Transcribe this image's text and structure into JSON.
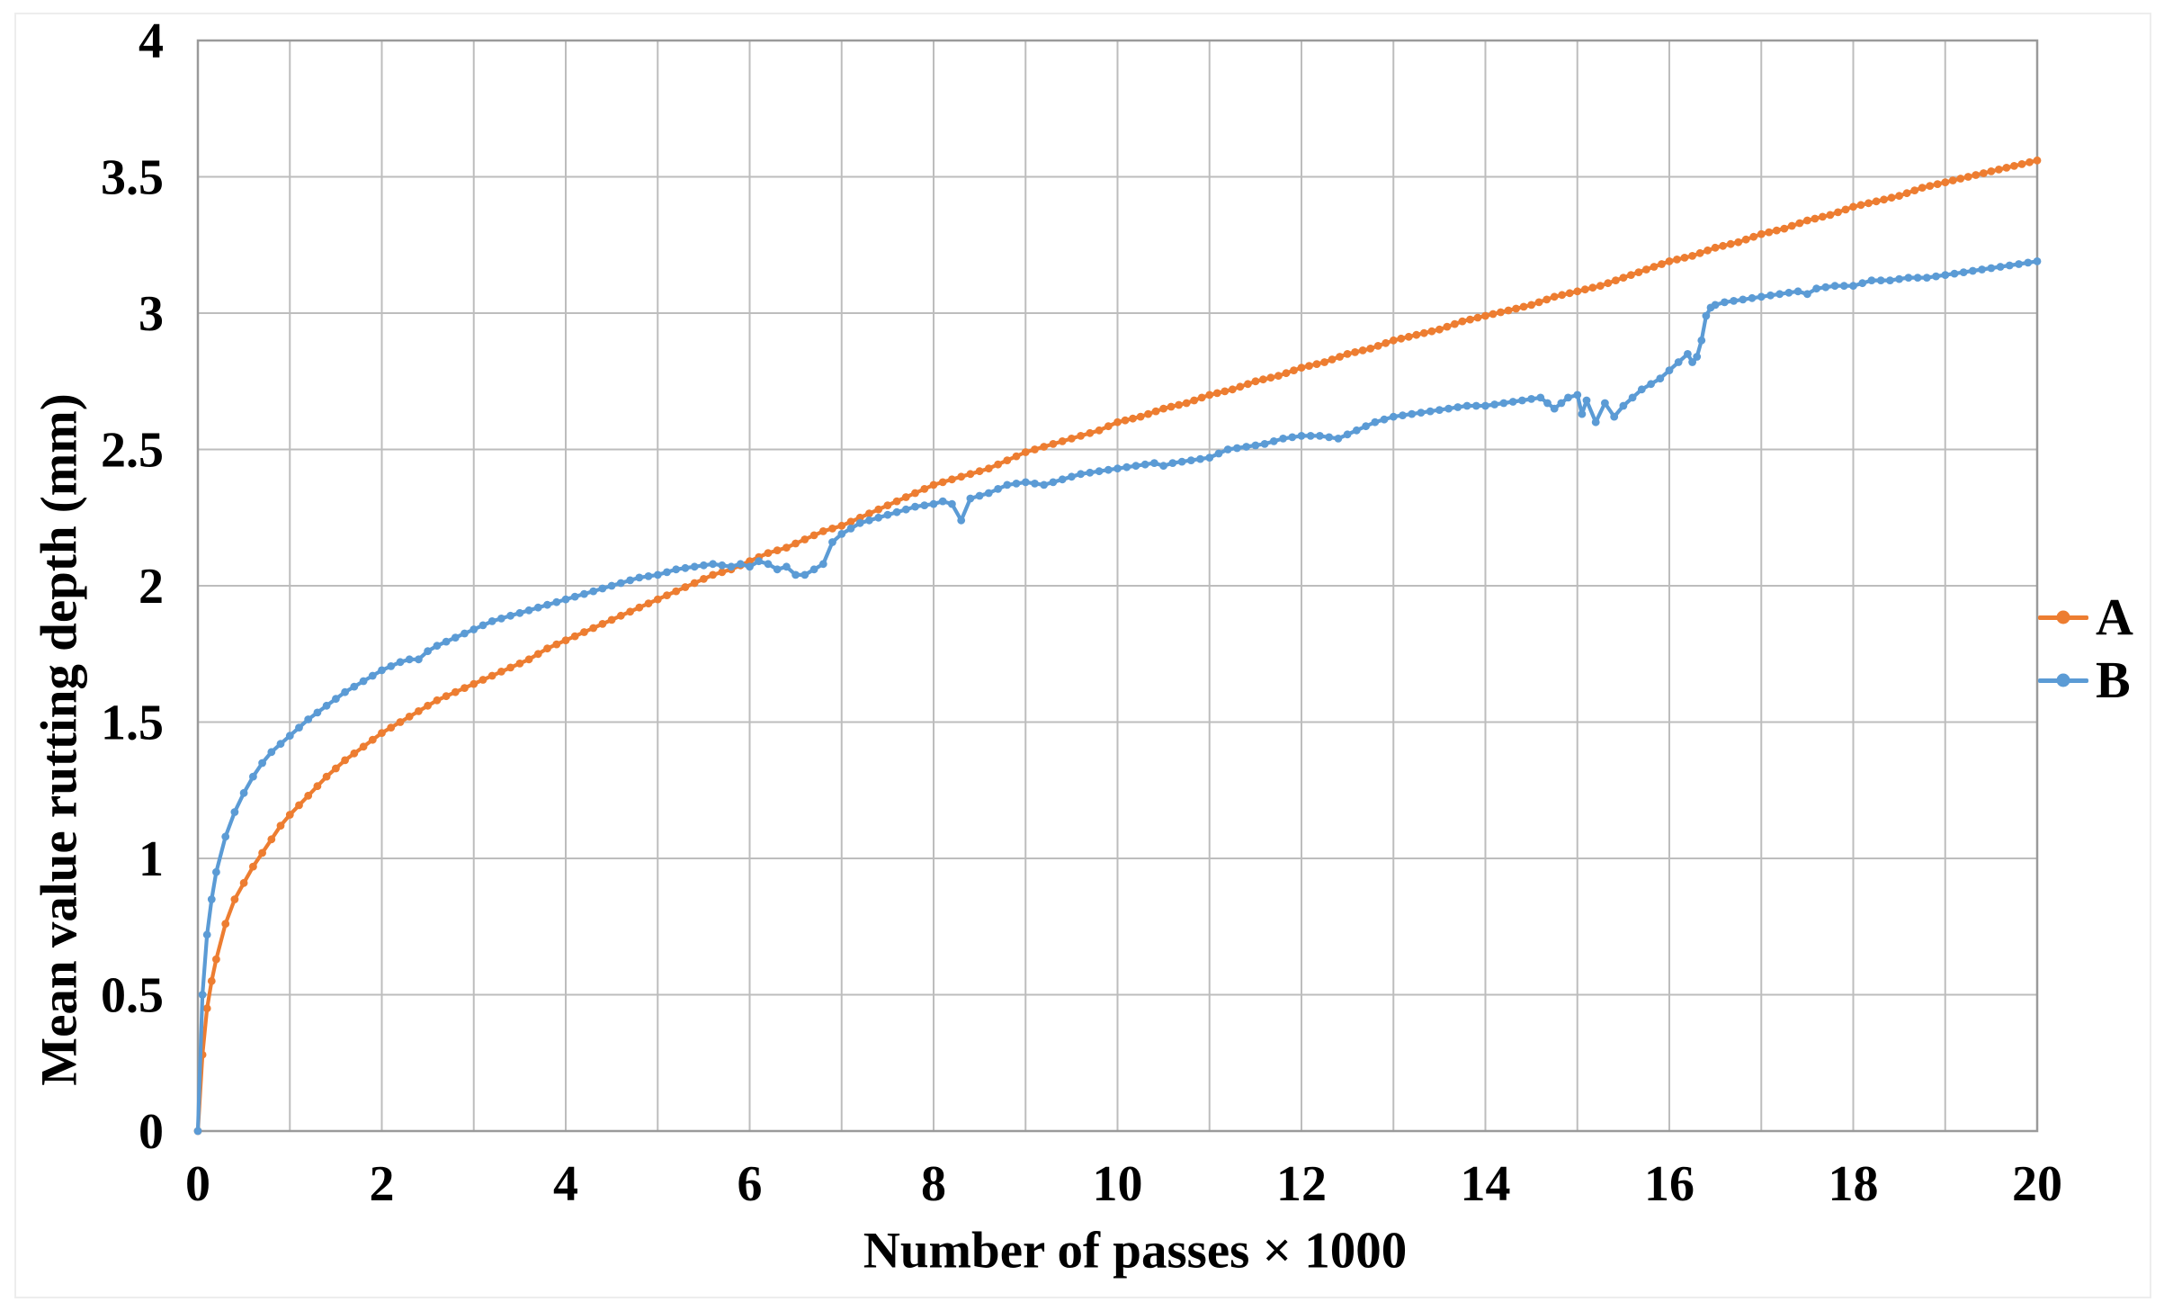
{
  "figure": {
    "background": "#ffffff",
    "outer_border_color": "#ededed",
    "grid_color": "#bdbdbd",
    "plot_border_color": "#9a9a9a"
  },
  "legend": {
    "items": [
      {
        "label": "A",
        "color": "#ED7D31"
      },
      {
        "label": "B",
        "color": "#5B9BD5"
      }
    ]
  },
  "chart_data": {
    "type": "line",
    "title": "",
    "xlabel": "Number of passes × 1000",
    "ylabel": "Mean value rutting depth (mm)",
    "xlim": [
      0,
      20
    ],
    "ylim": [
      0,
      4
    ],
    "x_ticks": [
      0,
      2,
      4,
      6,
      8,
      10,
      12,
      14,
      16,
      18,
      20
    ],
    "y_ticks": [
      0,
      0.5,
      1,
      1.5,
      2,
      2.5,
      3,
      3.5,
      4
    ],
    "grid": "both",
    "grid_x_step": 1,
    "grid_y_step": 0.5,
    "legend_position": "right-outside",
    "series": [
      {
        "name": "A",
        "color": "#ED7D31",
        "points": [
          [
            0,
            0
          ],
          [
            0.05,
            0.28
          ],
          [
            0.1,
            0.45
          ],
          [
            0.15,
            0.55
          ],
          [
            0.2,
            0.63
          ],
          [
            0.3,
            0.76
          ],
          [
            0.4,
            0.85
          ],
          [
            0.5,
            0.91
          ],
          [
            0.6,
            0.97
          ],
          [
            0.7,
            1.02
          ],
          [
            0.8,
            1.07
          ],
          [
            0.9,
            1.12
          ],
          [
            1,
            1.16
          ],
          [
            1.2,
            1.23
          ],
          [
            1.4,
            1.3
          ],
          [
            1.6,
            1.36
          ],
          [
            1.8,
            1.41
          ],
          [
            2,
            1.46
          ],
          [
            2.2,
            1.5
          ],
          [
            2.4,
            1.54
          ],
          [
            2.6,
            1.58
          ],
          [
            2.8,
            1.61
          ],
          [
            3,
            1.64
          ],
          [
            3.2,
            1.67
          ],
          [
            3.4,
            1.7
          ],
          [
            3.6,
            1.73
          ],
          [
            3.8,
            1.77
          ],
          [
            4,
            1.8
          ],
          [
            4.2,
            1.83
          ],
          [
            4.4,
            1.86
          ],
          [
            4.6,
            1.89
          ],
          [
            4.8,
            1.92
          ],
          [
            5,
            1.95
          ],
          [
            5.2,
            1.98
          ],
          [
            5.4,
            2.01
          ],
          [
            5.6,
            2.04
          ],
          [
            5.8,
            2.06
          ],
          [
            6,
            2.09
          ],
          [
            6.2,
            2.12
          ],
          [
            6.4,
            2.14
          ],
          [
            6.6,
            2.17
          ],
          [
            6.8,
            2.2
          ],
          [
            7,
            2.22
          ],
          [
            7.2,
            2.25
          ],
          [
            7.4,
            2.28
          ],
          [
            7.6,
            2.31
          ],
          [
            7.8,
            2.34
          ],
          [
            8,
            2.37
          ],
          [
            8.2,
            2.39
          ],
          [
            8.4,
            2.41
          ],
          [
            8.6,
            2.43
          ],
          [
            8.8,
            2.46
          ],
          [
            9,
            2.49
          ],
          [
            9.2,
            2.51
          ],
          [
            9.4,
            2.53
          ],
          [
            9.6,
            2.55
          ],
          [
            9.8,
            2.57
          ],
          [
            10,
            2.6
          ],
          [
            10.25,
            2.62
          ],
          [
            10.5,
            2.65
          ],
          [
            10.75,
            2.67
          ],
          [
            11,
            2.7
          ],
          [
            11.25,
            2.72
          ],
          [
            11.5,
            2.75
          ],
          [
            11.75,
            2.77
          ],
          [
            12,
            2.8
          ],
          [
            12.25,
            2.82
          ],
          [
            12.5,
            2.85
          ],
          [
            12.75,
            2.87
          ],
          [
            13,
            2.9
          ],
          [
            13.25,
            2.92
          ],
          [
            13.5,
            2.94
          ],
          [
            13.75,
            2.97
          ],
          [
            14,
            2.99
          ],
          [
            14.25,
            3.01
          ],
          [
            14.5,
            3.03
          ],
          [
            14.75,
            3.06
          ],
          [
            15,
            3.08
          ],
          [
            15.25,
            3.1
          ],
          [
            15.5,
            3.13
          ],
          [
            15.75,
            3.16
          ],
          [
            16,
            3.19
          ],
          [
            16.25,
            3.21
          ],
          [
            16.5,
            3.24
          ],
          [
            16.75,
            3.26
          ],
          [
            17,
            3.29
          ],
          [
            17.25,
            3.31
          ],
          [
            17.5,
            3.34
          ],
          [
            17.75,
            3.36
          ],
          [
            18,
            3.39
          ],
          [
            18.25,
            3.41
          ],
          [
            18.5,
            3.43
          ],
          [
            18.75,
            3.46
          ],
          [
            19,
            3.48
          ],
          [
            19.25,
            3.5
          ],
          [
            19.5,
            3.52
          ],
          [
            19.75,
            3.54
          ],
          [
            20,
            3.56
          ]
        ]
      },
      {
        "name": "B",
        "color": "#5B9BD5",
        "points": [
          [
            0,
            0
          ],
          [
            0.05,
            0.5
          ],
          [
            0.1,
            0.72
          ],
          [
            0.15,
            0.85
          ],
          [
            0.2,
            0.95
          ],
          [
            0.3,
            1.08
          ],
          [
            0.4,
            1.17
          ],
          [
            0.5,
            1.24
          ],
          [
            0.6,
            1.3
          ],
          [
            0.7,
            1.35
          ],
          [
            0.8,
            1.39
          ],
          [
            0.9,
            1.42
          ],
          [
            1,
            1.45
          ],
          [
            1.2,
            1.51
          ],
          [
            1.4,
            1.56
          ],
          [
            1.6,
            1.61
          ],
          [
            1.8,
            1.65
          ],
          [
            2,
            1.69
          ],
          [
            2.2,
            1.72
          ],
          [
            2.3,
            1.73
          ],
          [
            2.4,
            1.73
          ],
          [
            2.5,
            1.76
          ],
          [
            2.6,
            1.78
          ],
          [
            2.8,
            1.81
          ],
          [
            3,
            1.84
          ],
          [
            3.2,
            1.87
          ],
          [
            3.4,
            1.89
          ],
          [
            3.6,
            1.91
          ],
          [
            3.8,
            1.93
          ],
          [
            4,
            1.95
          ],
          [
            4.2,
            1.97
          ],
          [
            4.4,
            1.99
          ],
          [
            4.6,
            2.01
          ],
          [
            4.8,
            2.03
          ],
          [
            5,
            2.04
          ],
          [
            5.2,
            2.06
          ],
          [
            5.4,
            2.07
          ],
          [
            5.6,
            2.08
          ],
          [
            5.8,
            2.07
          ],
          [
            5.9,
            2.08
          ],
          [
            6,
            2.07
          ],
          [
            6.1,
            2.09
          ],
          [
            6.2,
            2.08
          ],
          [
            6.3,
            2.06
          ],
          [
            6.4,
            2.07
          ],
          [
            6.5,
            2.04
          ],
          [
            6.6,
            2.04
          ],
          [
            6.7,
            2.06
          ],
          [
            6.8,
            2.08
          ],
          [
            6.9,
            2.16
          ],
          [
            7,
            2.19
          ],
          [
            7.1,
            2.21
          ],
          [
            7.2,
            2.23
          ],
          [
            7.4,
            2.25
          ],
          [
            7.6,
            2.27
          ],
          [
            7.8,
            2.29
          ],
          [
            8,
            2.3
          ],
          [
            8.1,
            2.31
          ],
          [
            8.2,
            2.3
          ],
          [
            8.3,
            2.24
          ],
          [
            8.4,
            2.32
          ],
          [
            8.5,
            2.33
          ],
          [
            8.6,
            2.34
          ],
          [
            8.8,
            2.37
          ],
          [
            9,
            2.38
          ],
          [
            9.2,
            2.37
          ],
          [
            9.4,
            2.39
          ],
          [
            9.6,
            2.41
          ],
          [
            9.8,
            2.42
          ],
          [
            10,
            2.43
          ],
          [
            10.2,
            2.44
          ],
          [
            10.4,
            2.45
          ],
          [
            10.5,
            2.44
          ],
          [
            10.6,
            2.45
          ],
          [
            10.8,
            2.46
          ],
          [
            11,
            2.47
          ],
          [
            11.2,
            2.5
          ],
          [
            11.4,
            2.51
          ],
          [
            11.6,
            2.52
          ],
          [
            11.8,
            2.54
          ],
          [
            12,
            2.55
          ],
          [
            12.2,
            2.55
          ],
          [
            12.4,
            2.54
          ],
          [
            12.6,
            2.57
          ],
          [
            12.8,
            2.6
          ],
          [
            13,
            2.62
          ],
          [
            13.2,
            2.63
          ],
          [
            13.4,
            2.64
          ],
          [
            13.6,
            2.65
          ],
          [
            13.8,
            2.66
          ],
          [
            14,
            2.66
          ],
          [
            14.2,
            2.67
          ],
          [
            14.4,
            2.68
          ],
          [
            14.6,
            2.69
          ],
          [
            14.75,
            2.65
          ],
          [
            14.9,
            2.69
          ],
          [
            15,
            2.7
          ],
          [
            15.05,
            2.63
          ],
          [
            15.1,
            2.68
          ],
          [
            15.2,
            2.6
          ],
          [
            15.3,
            2.67
          ],
          [
            15.4,
            2.62
          ],
          [
            15.5,
            2.66
          ],
          [
            15.6,
            2.69
          ],
          [
            15.7,
            2.72
          ],
          [
            15.8,
            2.74
          ],
          [
            15.9,
            2.76
          ],
          [
            16,
            2.79
          ],
          [
            16.1,
            2.82
          ],
          [
            16.2,
            2.85
          ],
          [
            16.25,
            2.82
          ],
          [
            16.3,
            2.84
          ],
          [
            16.35,
            2.9
          ],
          [
            16.4,
            2.99
          ],
          [
            16.45,
            3.02
          ],
          [
            16.5,
            3.03
          ],
          [
            16.6,
            3.04
          ],
          [
            16.8,
            3.05
          ],
          [
            17,
            3.06
          ],
          [
            17.2,
            3.07
          ],
          [
            17.4,
            3.08
          ],
          [
            17.5,
            3.07
          ],
          [
            17.6,
            3.09
          ],
          [
            17.8,
            3.1
          ],
          [
            18,
            3.1
          ],
          [
            18.2,
            3.12
          ],
          [
            18.4,
            3.12
          ],
          [
            18.6,
            3.13
          ],
          [
            18.8,
            3.13
          ],
          [
            19,
            3.14
          ],
          [
            19.2,
            3.15
          ],
          [
            19.4,
            3.16
          ],
          [
            19.6,
            3.17
          ],
          [
            19.8,
            3.18
          ],
          [
            20,
            3.19
          ]
        ]
      }
    ]
  }
}
